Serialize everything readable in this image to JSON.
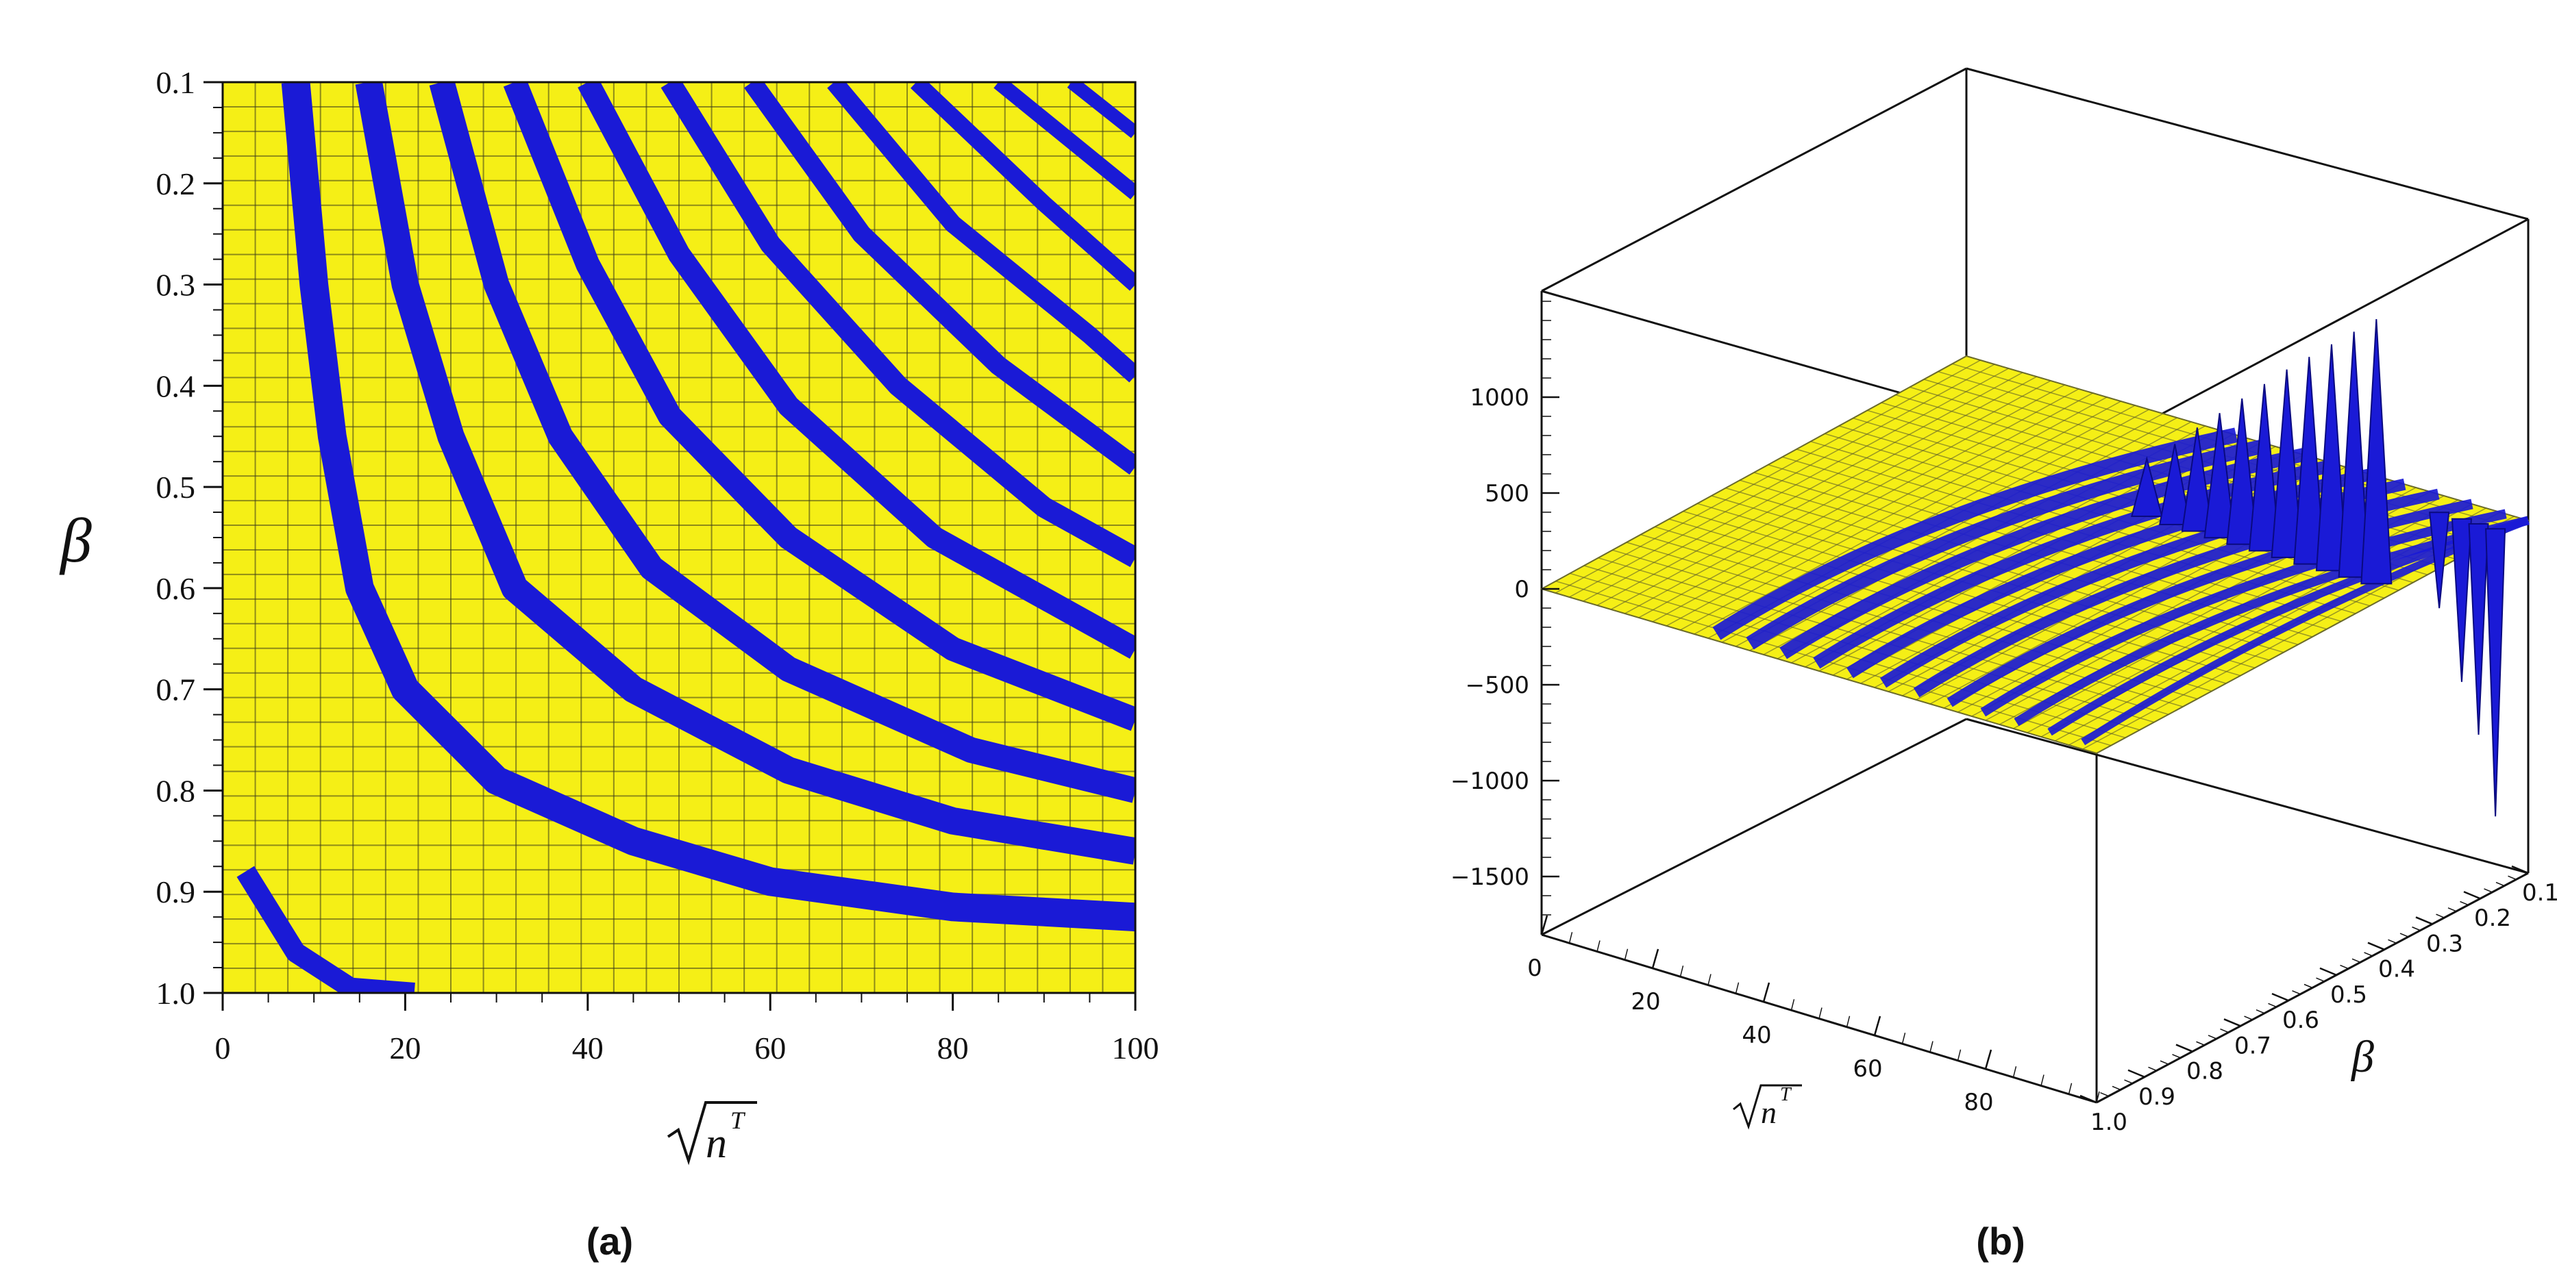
{
  "figure": {
    "caption_a": "(a)",
    "caption_b": "(b)"
  },
  "colors": {
    "surface_fill": "#f5ef16",
    "band_fill": "#1a1ad6",
    "grid_line": "#3a3a1a",
    "axis": "#111111"
  },
  "chart_data": [
    {
      "type": "heatmap",
      "panel": "(a)",
      "xlabel": "√n^T",
      "ylabel": "β",
      "xlim": [
        0,
        100
      ],
      "ylim": [
        1.0,
        0.1
      ],
      "x_ticks": [
        "0",
        "20",
        "40",
        "60",
        "80",
        "100"
      ],
      "y_ticks": [
        "0.1",
        "0.2",
        "0.3",
        "0.4",
        "0.5",
        "0.6",
        "0.7",
        "0.8",
        "0.9",
        "1.0"
      ],
      "grid": true,
      "colormap": [
        "yellow",
        "blue"
      ],
      "bands": [
        {
          "points": [
            [
              2.5,
              0.88
            ],
            [
              8,
              0.96
            ],
            [
              14,
              0.995
            ],
            [
              21,
              1.0
            ]
          ]
        },
        {
          "points": [
            [
              8,
              0.1
            ],
            [
              10,
              0.3
            ],
            [
              12,
              0.45
            ],
            [
              15,
              0.6
            ],
            [
              20,
              0.7
            ],
            [
              30,
              0.79
            ],
            [
              45,
              0.85
            ],
            [
              60,
              0.89
            ],
            [
              80,
              0.915
            ],
            [
              100,
              0.925
            ]
          ]
        },
        {
          "points": [
            [
              16,
              0.1
            ],
            [
              20,
              0.3
            ],
            [
              25,
              0.45
            ],
            [
              32,
              0.6
            ],
            [
              45,
              0.7
            ],
            [
              62,
              0.78
            ],
            [
              80,
              0.83
            ],
            [
              100,
              0.86
            ]
          ]
        },
        {
          "points": [
            [
              24,
              0.1
            ],
            [
              30,
              0.3
            ],
            [
              37,
              0.45
            ],
            [
              47,
              0.58
            ],
            [
              62,
              0.68
            ],
            [
              82,
              0.76
            ],
            [
              100,
              0.8
            ]
          ]
        },
        {
          "points": [
            [
              32,
              0.1
            ],
            [
              40,
              0.28
            ],
            [
              49,
              0.43
            ],
            [
              62,
              0.55
            ],
            [
              80,
              0.66
            ],
            [
              100,
              0.73
            ]
          ]
        },
        {
          "points": [
            [
              40,
              0.1
            ],
            [
              50,
              0.27
            ],
            [
              62,
              0.42
            ],
            [
              78,
              0.55
            ],
            [
              100,
              0.66
            ]
          ]
        },
        {
          "points": [
            [
              49,
              0.1
            ],
            [
              60,
              0.26
            ],
            [
              74,
              0.4
            ],
            [
              90,
              0.52
            ],
            [
              100,
              0.57
            ]
          ]
        },
        {
          "points": [
            [
              58,
              0.1
            ],
            [
              70,
              0.25
            ],
            [
              85,
              0.38
            ],
            [
              100,
              0.48
            ]
          ]
        },
        {
          "points": [
            [
              67,
              0.1
            ],
            [
              80,
              0.24
            ],
            [
              95,
              0.35
            ],
            [
              100,
              0.39
            ]
          ]
        },
        {
          "points": [
            [
              76,
              0.1
            ],
            [
              90,
              0.22
            ],
            [
              100,
              0.3
            ]
          ]
        },
        {
          "points": [
            [
              85,
              0.1
            ],
            [
              100,
              0.21
            ]
          ]
        },
        {
          "points": [
            [
              93,
              0.1
            ],
            [
              100,
              0.15
            ]
          ]
        }
      ]
    },
    {
      "type": "surface",
      "panel": "(b)",
      "xlabel": "√n^T",
      "ylabel": "β",
      "x_ticks": [
        "0",
        "20",
        "40",
        "60",
        "80"
      ],
      "y_ticks": [
        "0.1",
        "0.2",
        "0.3",
        "0.4",
        "0.5",
        "0.6",
        "0.7",
        "0.8",
        "0.9",
        "1.0"
      ],
      "z_ticks": [
        "1000",
        "500",
        "0",
        "−500",
        "−1000",
        "−1500"
      ],
      "zlim": [
        -1800,
        1500
      ],
      "spikes": [
        {
          "x": 55,
          "z": 300
        },
        {
          "x": 60,
          "z": 420
        },
        {
          "x": 64,
          "z": 540
        },
        {
          "x": 68,
          "z": 650
        },
        {
          "x": 72,
          "z": 760
        },
        {
          "x": 76,
          "z": 870
        },
        {
          "x": 80,
          "z": 980
        },
        {
          "x": 84,
          "z": 1080
        },
        {
          "x": 88,
          "z": 1180
        },
        {
          "x": 92,
          "z": 1280
        },
        {
          "x": 96,
          "z": 1380
        }
      ],
      "negative_spikes": [
        {
          "x": 88,
          "z": -500
        },
        {
          "x": 92,
          "z": -850
        },
        {
          "x": 95,
          "z": -1100
        },
        {
          "x": 98,
          "z": -1500
        }
      ]
    }
  ]
}
